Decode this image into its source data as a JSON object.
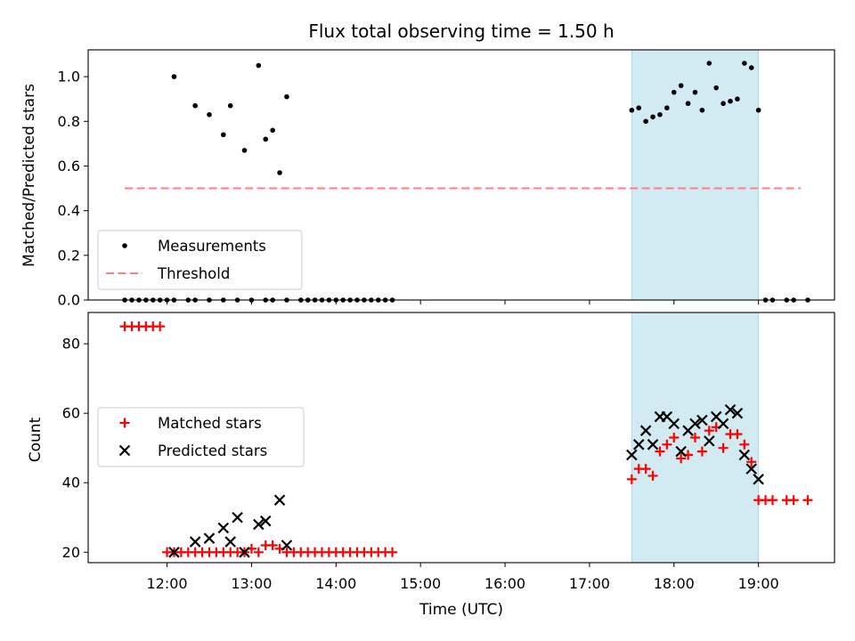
{
  "chart_data": {
    "title": "Flux total observing time = 1.50 h",
    "xlabel": "Time (UTC)",
    "x_ticks": [
      "12:00",
      "13:00",
      "14:00",
      "15:00",
      "16:00",
      "17:00",
      "18:00",
      "19:00"
    ],
    "shaded_interval": [
      "17:30",
      "19:00"
    ],
    "colors": {
      "shade": "#add8e6",
      "threshold": "#ff7f7f",
      "matched": "#ff0000",
      "predicted": "#000000",
      "measurement": "#000000"
    },
    "panels": [
      {
        "type": "scatter",
        "ylabel": "Matched/Predicted stars",
        "ylim": [
          0,
          1.12
        ],
        "y_ticks": [
          "0.0",
          "0.2",
          "0.4",
          "0.6",
          "0.8",
          "1.0"
        ],
        "legend_position": "lower-left",
        "series": [
          {
            "name": "Measurements",
            "marker": "dot",
            "x": [
              "11:30",
              "11:35",
              "11:40",
              "11:45",
              "11:50",
              "11:55",
              "12:00",
              "12:05",
              "12:15",
              "12:20",
              "12:30",
              "12:40",
              "12:50",
              "13:00",
              "13:10",
              "13:15",
              "13:25",
              "13:35",
              "13:40",
              "13:45",
              "13:50",
              "13:55",
              "14:00",
              "14:05",
              "14:10",
              "14:15",
              "14:20",
              "14:25",
              "14:30",
              "14:35",
              "14:40",
              "12:05",
              "12:20",
              "12:30",
              "12:40",
              "12:45",
              "12:55",
              "13:05",
              "13:10",
              "13:15",
              "13:20",
              "13:25",
              "17:30",
              "17:35",
              "17:40",
              "17:45",
              "17:50",
              "17:55",
              "18:00",
              "18:05",
              "18:10",
              "18:15",
              "18:20",
              "18:25",
              "18:30",
              "18:35",
              "18:40",
              "18:45",
              "18:50",
              "18:55",
              "19:00",
              "19:05",
              "19:10",
              "19:20",
              "19:25",
              "19:35"
            ],
            "y": [
              0,
              0,
              0,
              0,
              0,
              0,
              0,
              0,
              0,
              0,
              0,
              0,
              0,
              0,
              0,
              0,
              0,
              0,
              0,
              0,
              0,
              0,
              0,
              0,
              0,
              0,
              0,
              0,
              0,
              0,
              0,
              1.0,
              0.87,
              0.83,
              0.74,
              0.87,
              0.67,
              1.05,
              0.72,
              0.76,
              0.57,
              0.91,
              0.85,
              0.86,
              0.8,
              0.82,
              0.83,
              0.86,
              0.93,
              0.96,
              0.88,
              0.93,
              0.85,
              1.06,
              0.95,
              0.88,
              0.89,
              0.9,
              1.06,
              1.04,
              0.85,
              0,
              0,
              0,
              0,
              0
            ]
          },
          {
            "name": "Threshold",
            "style": "dashed",
            "x": [
              "11:30",
              "19:30"
            ],
            "y": [
              0.5,
              0.5
            ]
          }
        ]
      },
      {
        "type": "scatter",
        "ylabel": "Count",
        "ylim": [
          17,
          89
        ],
        "y_ticks": [
          "20",
          "40",
          "60",
          "80"
        ],
        "legend_position": "center-left",
        "series": [
          {
            "name": "Matched stars",
            "marker": "plus",
            "x": [
              "11:30",
              "11:35",
              "11:40",
              "11:45",
              "11:50",
              "11:55",
              "12:00",
              "12:05",
              "12:10",
              "12:15",
              "12:20",
              "12:25",
              "12:30",
              "12:35",
              "12:40",
              "12:45",
              "12:50",
              "12:55",
              "13:00",
              "13:05",
              "13:10",
              "13:15",
              "13:20",
              "13:25",
              "13:30",
              "13:35",
              "13:40",
              "13:45",
              "13:50",
              "13:55",
              "14:00",
              "14:05",
              "14:10",
              "14:15",
              "14:20",
              "14:25",
              "14:30",
              "14:35",
              "14:40",
              "17:30",
              "17:35",
              "17:40",
              "17:45",
              "17:50",
              "17:55",
              "18:00",
              "18:05",
              "18:10",
              "18:15",
              "18:20",
              "18:25",
              "18:30",
              "18:35",
              "18:40",
              "18:45",
              "18:50",
              "18:55",
              "19:00",
              "19:05",
              "19:10",
              "19:20",
              "19:25",
              "19:35"
            ],
            "y": [
              85,
              85,
              85,
              85,
              85,
              85,
              20,
              20,
              20,
              20,
              20,
              20,
              20,
              20,
              20,
              20,
              20,
              20,
              21,
              20,
              22,
              22,
              21,
              20,
              20,
              20,
              20,
              20,
              20,
              20,
              20,
              20,
              20,
              20,
              20,
              20,
              20,
              20,
              20,
              41,
              44,
              44,
              42,
              49,
              51,
              53,
              47,
              48,
              53,
              49,
              55,
              56,
              50,
              54,
              54,
              51,
              46,
              35,
              35,
              35,
              35,
              35,
              35
            ]
          },
          {
            "name": "Predicted stars",
            "marker": "x",
            "x": [
              "12:05",
              "12:20",
              "12:30",
              "12:40",
              "12:45",
              "12:50",
              "12:55",
              "13:05",
              "13:10",
              "13:20",
              "13:25",
              "17:30",
              "17:35",
              "17:40",
              "17:45",
              "17:50",
              "17:55",
              "18:00",
              "18:05",
              "18:10",
              "18:15",
              "18:20",
              "18:25",
              "18:30",
              "18:35",
              "18:40",
              "18:45",
              "18:50",
              "18:55",
              "19:00"
            ],
            "y": [
              20,
              23,
              24,
              27,
              23,
              30,
              20,
              28,
              29,
              35,
              22,
              48,
              51,
              55,
              51,
              59,
              59,
              57,
              49,
              55,
              57,
              58,
              52,
              59,
              57,
              61,
              60,
              48,
              44,
              41
            ]
          }
        ]
      }
    ]
  }
}
